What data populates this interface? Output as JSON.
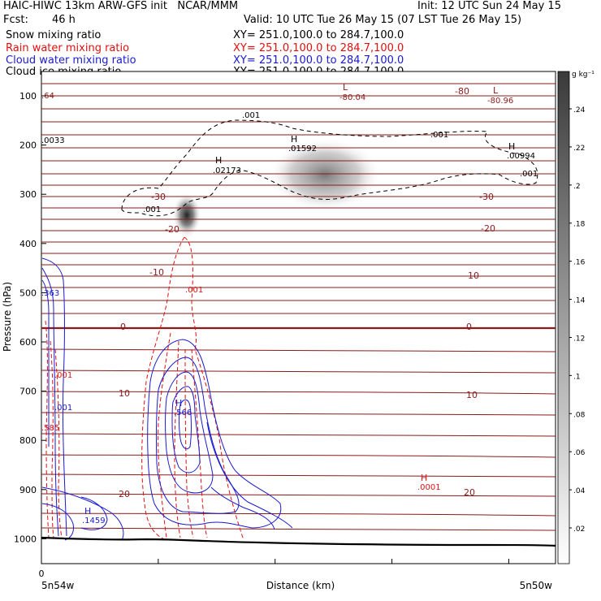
{
  "header": {
    "title": "HAIC-HIWC 13km ARW-GFS init   NCAR/MMM",
    "init": "Init: 12 UTC Sun 24 May 15",
    "fcst_label": "Fcst:",
    "fcst_value": "46 h",
    "valid": "Valid: 10 UTC Tue 26 May 15 (07 LST Tue 26 May 15)",
    "legend": [
      {
        "name": "Snow mixing ratio",
        "xy": "XY= 251.0,100.0 to 284.7,100.0",
        "color": "#000000"
      },
      {
        "name": "Rain water mixing ratio",
        "xy": "XY= 251.0,100.0 to 284.7,100.0",
        "color": "#e01010"
      },
      {
        "name": "Cloud water mixing ratio",
        "xy": "XY= 251.0,100.0 to 284.7,100.0",
        "color": "#1a1ad0"
      },
      {
        "name": "Cloud ice mixing ratio",
        "xy": "XY= 251.0,100.0 to 284.7,100.0",
        "color": "#000000"
      }
    ]
  },
  "chart_data": {
    "type": "contour",
    "ylabel": "Pressure (hPa)",
    "xlabel": "Distance (km)",
    "x_ticks": [
      "0"
    ],
    "x_end_labels": [
      "5n54w",
      "5n50w"
    ],
    "y_ticks": [
      100,
      200,
      300,
      400,
      500,
      600,
      700,
      800,
      900,
      1000
    ],
    "ylim": [
      1050,
      80
    ],
    "colorbar": {
      "unit": "g kg⁻¹",
      "ticks": [
        ".24",
        ".22",
        ".2",
        ".18",
        ".16",
        ".14",
        ".12",
        ".1",
        ".08",
        ".06",
        ".04",
        ".02"
      ]
    },
    "temperature_labels": [
      "-80",
      "-30",
      "-20",
      "-10",
      "0",
      "10",
      "20"
    ],
    "temperature_color": "#8b1a1a",
    "annotations": [
      {
        "text": "-80.04",
        "marker": "L",
        "color": "#8b1a1a"
      },
      {
        "text": "-80.96",
        "marker": "L",
        "color": "#8b1a1a"
      },
      {
        "text": "-80",
        "color": "#8b1a1a"
      },
      {
        "text": ".64",
        "color": "#8b1a1a"
      },
      {
        "text": ".001",
        "color": "#000000"
      },
      {
        "text": ".0033",
        "color": "#000000"
      },
      {
        "text": ".01592",
        "marker": "H",
        "color": "#000000"
      },
      {
        "text": ".00994",
        "marker": "H",
        "color": "#000000"
      },
      {
        "text": ".02173",
        "marker": "H",
        "color": "#000000"
      },
      {
        "text": ".363",
        "color": "#1a1ad0"
      },
      {
        "text": ".566",
        "marker": "H",
        "color": "#1a1ad0"
      },
      {
        "text": ".1459",
        "marker": "H",
        "color": "#1a1ad0"
      },
      {
        "text": ".585",
        "color": "#e01010"
      },
      {
        "text": ".0001",
        "marker": "H",
        "color": "#e01010"
      }
    ]
  }
}
